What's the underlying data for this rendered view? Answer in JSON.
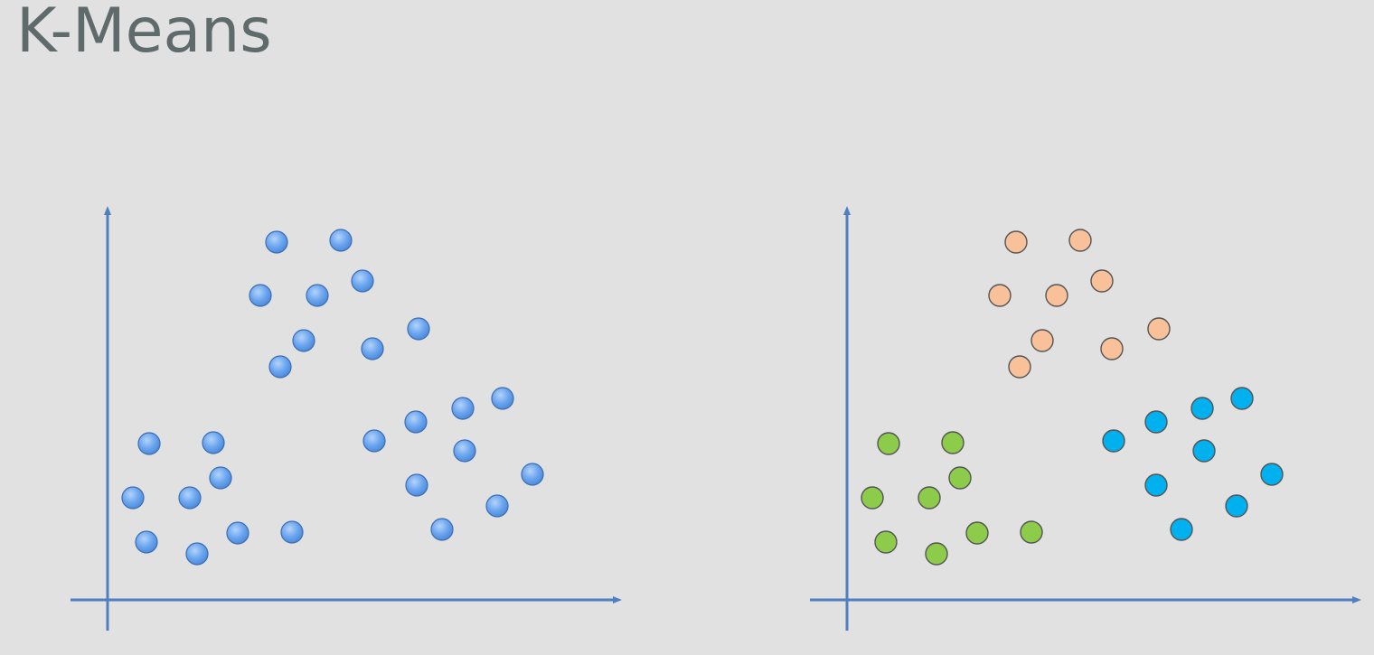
{
  "slide": {
    "title": "K-Means"
  },
  "colors": {
    "axis": "#4f7fbf",
    "unclustered_point": "#6aa5ef",
    "cluster_orange": "#f9c19a",
    "cluster_green": "#8dcb4a",
    "cluster_blue": "#00b0ef",
    "point_outline": "#555555",
    "background": "#e1e1e1"
  },
  "chart_data": [
    {
      "type": "scatter",
      "name": "before-clustering",
      "series": [
        {
          "cluster": "unclustered",
          "color": "#6aa5ef",
          "points": [
            [
              306,
              268
            ],
            [
              377,
              266
            ],
            [
              288,
              327
            ],
            [
              351,
              327
            ],
            [
              401,
              311
            ],
            [
              336,
              377
            ],
            [
              412,
              386
            ],
            [
              463,
              364
            ],
            [
              310,
              406
            ],
            [
              165,
              491
            ],
            [
              236,
              490
            ],
            [
              244,
              529
            ],
            [
              147,
              551
            ],
            [
              210,
              551
            ],
            [
              162,
              600
            ],
            [
              218,
              613
            ],
            [
              263,
              590
            ],
            [
              323,
              589
            ],
            [
              556,
              441
            ],
            [
              512,
              452
            ],
            [
              460,
              467
            ],
            [
              414,
              488
            ],
            [
              514,
              499
            ],
            [
              589,
              525
            ],
            [
              461,
              537
            ],
            [
              550,
              560
            ],
            [
              489,
              586
            ]
          ]
        }
      ]
    },
    {
      "type": "scatter",
      "name": "after-clustering",
      "series": [
        {
          "cluster": "orange",
          "color": "#f9c19a",
          "points": [
            [
              1124,
              268
            ],
            [
              1195,
              266
            ],
            [
              1106,
              327
            ],
            [
              1169,
              327
            ],
            [
              1219,
              311
            ],
            [
              1153,
              377
            ],
            [
              1230,
              386
            ],
            [
              1282,
              364
            ],
            [
              1128,
              406
            ]
          ]
        },
        {
          "cluster": "green",
          "color": "#8dcb4a",
          "points": [
            [
              983,
              491
            ],
            [
              1054,
              490
            ],
            [
              1062,
              529
            ],
            [
              965,
              551
            ],
            [
              1028,
              551
            ],
            [
              980,
              600
            ],
            [
              1036,
              613
            ],
            [
              1081,
              590
            ],
            [
              1141,
              589
            ]
          ]
        },
        {
          "cluster": "blue",
          "color": "#00b0ef",
          "points": [
            [
              1374,
              441
            ],
            [
              1330,
              452
            ],
            [
              1279,
              467
            ],
            [
              1232,
              488
            ],
            [
              1332,
              499
            ],
            [
              1407,
              525
            ],
            [
              1279,
              537
            ],
            [
              1368,
              560
            ],
            [
              1307,
              586
            ]
          ]
        }
      ]
    }
  ]
}
